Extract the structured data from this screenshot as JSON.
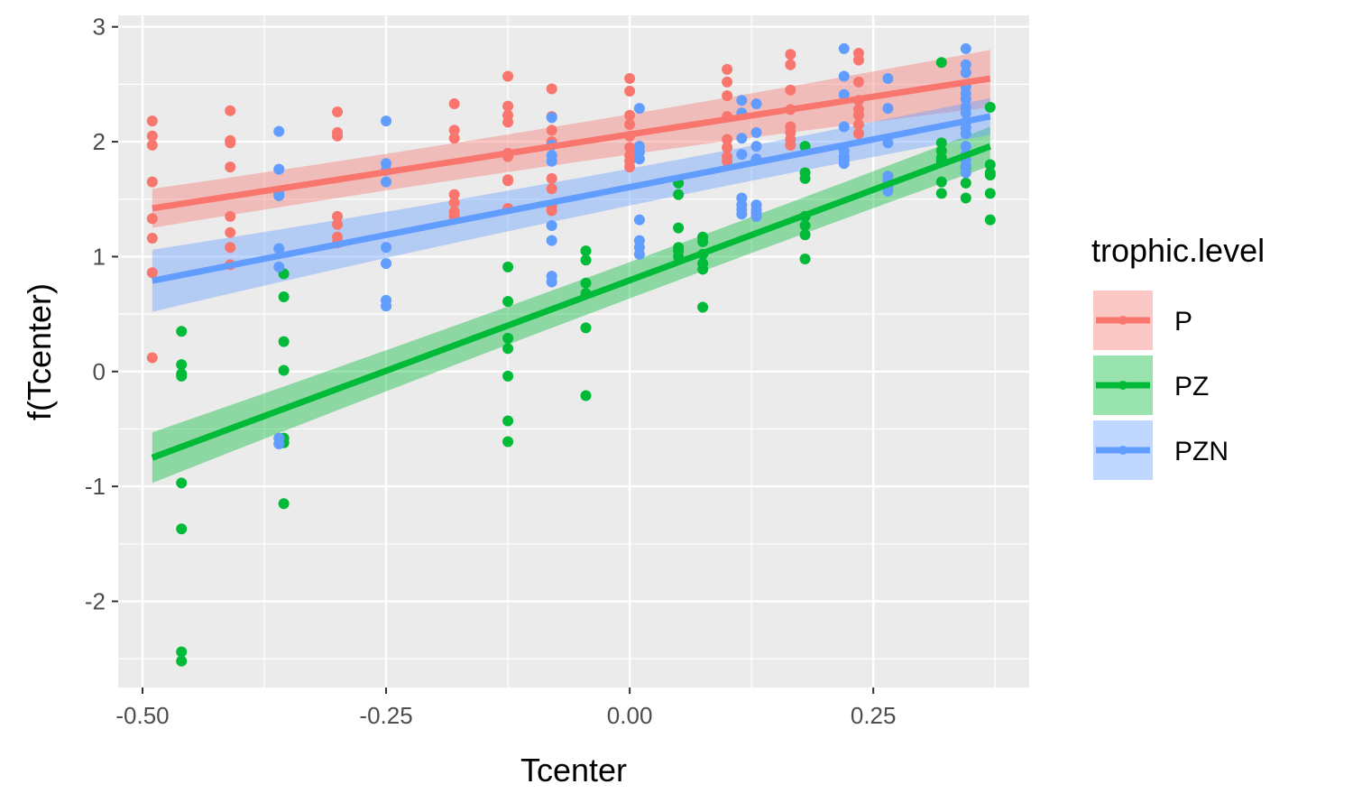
{
  "chart_data": {
    "type": "scatter",
    "xlabel": "Tcenter",
    "ylabel": "f(Tcenter)",
    "xlim": [
      -0.525,
      0.41
    ],
    "ylim": [
      -2.75,
      3.1
    ],
    "xticks": [
      -0.5,
      -0.25,
      0.0,
      0.25
    ],
    "xtick_labels": [
      "-0.50",
      "-0.25",
      "0.00",
      "0.25"
    ],
    "yticks": [
      -2,
      -1,
      0,
      1,
      2,
      3
    ],
    "ytick_labels": [
      "-2",
      "-1",
      "0",
      "1",
      "2",
      "3"
    ],
    "grid": true,
    "legend": {
      "title": "trophic.level",
      "placement": "right"
    },
    "series": [
      {
        "name": "P",
        "color": "#F8766D",
        "fit": {
          "x": [
            -0.49,
            0.37
          ],
          "y": [
            1.42,
            2.55
          ],
          "band_halfwidth": [
            0.17,
            0.25
          ]
        },
        "points": [
          [
            -0.49,
            2.18
          ],
          [
            -0.49,
            2.05
          ],
          [
            -0.49,
            1.97
          ],
          [
            -0.49,
            1.65
          ],
          [
            -0.49,
            1.33
          ],
          [
            -0.49,
            1.16
          ],
          [
            -0.49,
            0.86
          ],
          [
            -0.49,
            0.12
          ],
          [
            -0.41,
            2.27
          ],
          [
            -0.41,
            2.01
          ],
          [
            -0.41,
            1.99
          ],
          [
            -0.41,
            1.78
          ],
          [
            -0.41,
            1.35
          ],
          [
            -0.41,
            1.21
          ],
          [
            -0.41,
            1.08
          ],
          [
            -0.41,
            0.93
          ],
          [
            -0.3,
            2.26
          ],
          [
            -0.3,
            2.08
          ],
          [
            -0.3,
            2.05
          ],
          [
            -0.3,
            1.35
          ],
          [
            -0.3,
            1.28
          ],
          [
            -0.3,
            1.17
          ],
          [
            -0.3,
            1.12
          ],
          [
            -0.18,
            2.33
          ],
          [
            -0.18,
            2.1
          ],
          [
            -0.18,
            2.03
          ],
          [
            -0.18,
            1.54
          ],
          [
            -0.18,
            1.47
          ],
          [
            -0.18,
            1.39
          ],
          [
            -0.18,
            1.35
          ],
          [
            -0.125,
            2.57
          ],
          [
            -0.125,
            2.31
          ],
          [
            -0.125,
            2.23
          ],
          [
            -0.125,
            2.17
          ],
          [
            -0.125,
            1.9
          ],
          [
            -0.125,
            1.87
          ],
          [
            -0.125,
            1.67
          ],
          [
            -0.125,
            1.66
          ],
          [
            -0.125,
            1.42
          ],
          [
            -0.08,
            2.46
          ],
          [
            -0.08,
            2.22
          ],
          [
            -0.08,
            2.1
          ],
          [
            -0.08,
            2.0
          ],
          [
            -0.08,
            1.68
          ],
          [
            -0.08,
            1.59
          ],
          [
            -0.08,
            1.44
          ],
          [
            -0.08,
            1.4
          ],
          [
            0.0,
            2.55
          ],
          [
            0.0,
            2.44
          ],
          [
            0.0,
            2.23
          ],
          [
            0.0,
            2.15
          ],
          [
            0.0,
            2.05
          ],
          [
            0.0,
            1.95
          ],
          [
            0.0,
            1.88
          ],
          [
            0.0,
            1.83
          ],
          [
            0.0,
            1.78
          ],
          [
            0.1,
            2.63
          ],
          [
            0.1,
            2.52
          ],
          [
            0.1,
            2.4
          ],
          [
            0.1,
            2.22
          ],
          [
            0.1,
            2.02
          ],
          [
            0.1,
            1.95
          ],
          [
            0.1,
            1.87
          ],
          [
            0.1,
            1.83
          ],
          [
            0.165,
            2.76
          ],
          [
            0.165,
            2.67
          ],
          [
            0.165,
            2.45
          ],
          [
            0.165,
            2.28
          ],
          [
            0.165,
            2.13
          ],
          [
            0.165,
            2.08
          ],
          [
            0.165,
            2.02
          ],
          [
            0.165,
            1.97
          ],
          [
            0.235,
            2.77
          ],
          [
            0.235,
            2.71
          ],
          [
            0.235,
            2.52
          ],
          [
            0.235,
            2.36
          ],
          [
            0.235,
            2.28
          ],
          [
            0.235,
            2.23
          ],
          [
            0.235,
            2.15
          ],
          [
            0.235,
            2.07
          ]
        ]
      },
      {
        "name": "PZ",
        "color": "#00BA38",
        "fit": {
          "x": [
            -0.49,
            0.37
          ],
          "y": [
            -0.75,
            1.96
          ],
          "band_halfwidth": [
            0.22,
            0.17
          ]
        },
        "points": [
          [
            -0.46,
            0.35
          ],
          [
            -0.46,
            0.06
          ],
          [
            -0.46,
            -0.02
          ],
          [
            -0.46,
            -0.04
          ],
          [
            -0.46,
            -0.97
          ],
          [
            -0.46,
            -1.37
          ],
          [
            -0.46,
            -2.44
          ],
          [
            -0.46,
            -2.52
          ],
          [
            -0.355,
            0.85
          ],
          [
            -0.355,
            0.65
          ],
          [
            -0.355,
            0.26
          ],
          [
            -0.355,
            0.01
          ],
          [
            -0.355,
            -0.58
          ],
          [
            -0.355,
            -0.62
          ],
          [
            -0.355,
            -1.15
          ],
          [
            -0.125,
            0.91
          ],
          [
            -0.125,
            0.61
          ],
          [
            -0.125,
            0.29
          ],
          [
            -0.125,
            0.2
          ],
          [
            -0.125,
            -0.04
          ],
          [
            -0.125,
            -0.43
          ],
          [
            -0.125,
            -0.61
          ],
          [
            -0.045,
            1.05
          ],
          [
            -0.045,
            0.97
          ],
          [
            -0.045,
            0.77
          ],
          [
            -0.045,
            0.68
          ],
          [
            -0.045,
            0.38
          ],
          [
            -0.045,
            -0.21
          ],
          [
            0.05,
            1.64
          ],
          [
            0.05,
            1.54
          ],
          [
            0.05,
            1.25
          ],
          [
            0.05,
            1.08
          ],
          [
            0.05,
            1.05
          ],
          [
            0.05,
            1.0
          ],
          [
            0.075,
            1.17
          ],
          [
            0.075,
            1.13
          ],
          [
            0.075,
            1.02
          ],
          [
            0.075,
            0.94
          ],
          [
            0.075,
            0.89
          ],
          [
            0.075,
            0.56
          ],
          [
            0.18,
            1.96
          ],
          [
            0.18,
            1.73
          ],
          [
            0.18,
            1.68
          ],
          [
            0.18,
            1.35
          ],
          [
            0.18,
            1.27
          ],
          [
            0.18,
            1.19
          ],
          [
            0.18,
            0.98
          ],
          [
            0.32,
            2.69
          ],
          [
            0.32,
            1.99
          ],
          [
            0.32,
            1.92
          ],
          [
            0.32,
            1.86
          ],
          [
            0.32,
            1.83
          ],
          [
            0.32,
            1.65
          ],
          [
            0.32,
            1.55
          ],
          [
            0.345,
            1.78
          ],
          [
            0.345,
            1.64
          ],
          [
            0.345,
            1.51
          ],
          [
            0.37,
            2.3
          ],
          [
            0.37,
            1.8
          ],
          [
            0.37,
            1.73
          ],
          [
            0.37,
            1.71
          ],
          [
            0.37,
            1.55
          ],
          [
            0.37,
            1.32
          ]
        ]
      },
      {
        "name": "PZN",
        "color": "#619CFF",
        "fit": {
          "x": [
            -0.49,
            0.37
          ],
          "y": [
            0.79,
            2.22
          ],
          "band_halfwidth": [
            0.27,
            0.16
          ]
        },
        "points": [
          [
            -0.36,
            2.09
          ],
          [
            -0.36,
            1.76
          ],
          [
            -0.36,
            1.55
          ],
          [
            -0.36,
            1.53
          ],
          [
            -0.36,
            1.07
          ],
          [
            -0.36,
            0.91
          ],
          [
            -0.36,
            -0.58
          ],
          [
            -0.36,
            -0.63
          ],
          [
            -0.25,
            2.18
          ],
          [
            -0.25,
            1.81
          ],
          [
            -0.25,
            1.75
          ],
          [
            -0.25,
            1.65
          ],
          [
            -0.25,
            1.08
          ],
          [
            -0.25,
            0.94
          ],
          [
            -0.25,
            0.62
          ],
          [
            -0.25,
            0.57
          ],
          [
            -0.08,
            2.21
          ],
          [
            -0.08,
            1.97
          ],
          [
            -0.08,
            1.88
          ],
          [
            -0.08,
            1.83
          ],
          [
            -0.08,
            1.27
          ],
          [
            -0.08,
            1.14
          ],
          [
            -0.08,
            0.83
          ],
          [
            -0.08,
            0.78
          ],
          [
            0.01,
            2.29
          ],
          [
            0.01,
            1.96
          ],
          [
            0.01,
            1.91
          ],
          [
            0.01,
            1.85
          ],
          [
            0.01,
            1.32
          ],
          [
            0.01,
            1.14
          ],
          [
            0.01,
            1.08
          ],
          [
            0.01,
            1.02
          ],
          [
            0.115,
            2.36
          ],
          [
            0.115,
            2.25
          ],
          [
            0.115,
            2.03
          ],
          [
            0.115,
            1.89
          ],
          [
            0.115,
            1.51
          ],
          [
            0.115,
            1.45
          ],
          [
            0.115,
            1.41
          ],
          [
            0.115,
            1.37
          ],
          [
            0.13,
            2.33
          ],
          [
            0.13,
            2.08
          ],
          [
            0.13,
            1.96
          ],
          [
            0.13,
            1.85
          ],
          [
            0.13,
            1.45
          ],
          [
            0.13,
            1.41
          ],
          [
            0.13,
            1.38
          ],
          [
            0.13,
            1.35
          ],
          [
            0.22,
            2.81
          ],
          [
            0.22,
            2.57
          ],
          [
            0.22,
            2.41
          ],
          [
            0.22,
            2.13
          ],
          [
            0.22,
            1.92
          ],
          [
            0.22,
            1.87
          ],
          [
            0.22,
            1.84
          ],
          [
            0.22,
            1.81
          ],
          [
            0.265,
            2.55
          ],
          [
            0.265,
            2.29
          ],
          [
            0.265,
            1.99
          ],
          [
            0.265,
            1.7
          ],
          [
            0.265,
            1.66
          ],
          [
            0.265,
            1.61
          ],
          [
            0.265,
            1.57
          ],
          [
            0.345,
            2.81
          ],
          [
            0.345,
            2.67
          ],
          [
            0.345,
            2.6
          ],
          [
            0.345,
            2.48
          ],
          [
            0.345,
            2.42
          ],
          [
            0.345,
            2.37
          ],
          [
            0.345,
            2.3
          ],
          [
            0.345,
            2.25
          ],
          [
            0.345,
            2.17
          ],
          [
            0.345,
            2.12
          ],
          [
            0.345,
            2.07
          ],
          [
            0.345,
            1.96
          ],
          [
            0.345,
            1.89
          ],
          [
            0.345,
            1.84
          ],
          [
            0.345,
            1.79
          ],
          [
            0.345,
            1.73
          ]
        ]
      }
    ]
  }
}
